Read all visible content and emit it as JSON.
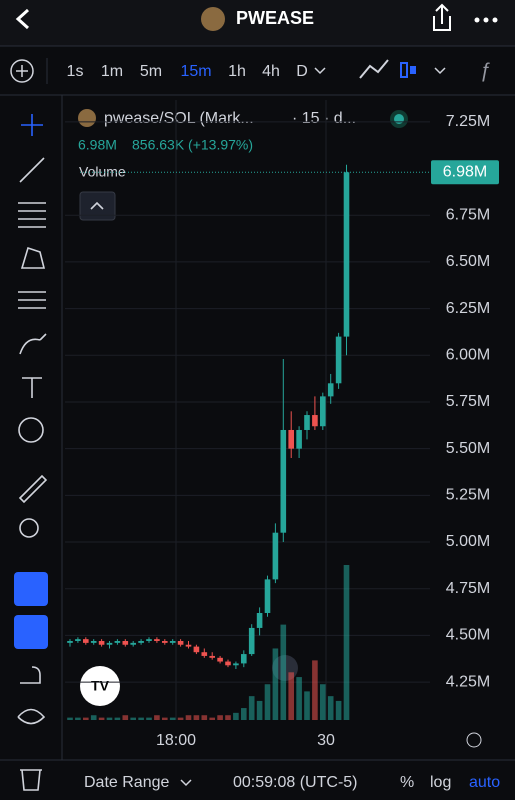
{
  "header": {
    "title": "PWEASE"
  },
  "toolbar": {
    "intervals": [
      "1s",
      "1m",
      "5m",
      "15m",
      "1h",
      "4h",
      "D"
    ],
    "active_interval": 3
  },
  "legend": {
    "symbol": "pwease/SOL (Mark...",
    "interval": "· 15 · d...",
    "price": "6.98M",
    "change": "856.63K (+13.97%)",
    "volume": "Volume"
  },
  "chart_data": {
    "type": "candlestick",
    "open": [
      4460000,
      4470000,
      4480000,
      4460000,
      4470000,
      4450000,
      4460000,
      4470000,
      4450000,
      4460000,
      4470000,
      4480000,
      4470000,
      4460000,
      4470000,
      4450000,
      4440000,
      4410000,
      4390000,
      4380000,
      4360000,
      4340000,
      4350000,
      4400000,
      4540000,
      4620000,
      4800000,
      5050000,
      5600000,
      5500000,
      5600000,
      5680000,
      5620000,
      5780000,
      5850000,
      6100000
    ],
    "high": [
      4480000,
      4490000,
      4490000,
      4480000,
      4480000,
      4470000,
      4480000,
      4480000,
      4470000,
      4480000,
      4490000,
      4490000,
      4480000,
      4480000,
      4480000,
      4470000,
      4450000,
      4430000,
      4410000,
      4390000,
      4370000,
      4360000,
      4420000,
      4560000,
      4650000,
      4820000,
      5100000,
      5980000,
      5700000,
      5620000,
      5700000,
      5780000,
      5800000,
      5900000,
      6120000,
      7020000
    ],
    "low": [
      4440000,
      4460000,
      4450000,
      4450000,
      4440000,
      4430000,
      4450000,
      4440000,
      4440000,
      4450000,
      4460000,
      4460000,
      4450000,
      4450000,
      4440000,
      4430000,
      4400000,
      4380000,
      4370000,
      4350000,
      4330000,
      4320000,
      4330000,
      4390000,
      4500000,
      4600000,
      4780000,
      5000000,
      5450000,
      5450000,
      5550000,
      5600000,
      5600000,
      5740000,
      5820000,
      6000000
    ],
    "close": [
      4470000,
      4480000,
      4460000,
      4470000,
      4450000,
      4460000,
      4470000,
      4450000,
      4460000,
      4470000,
      4480000,
      4470000,
      4460000,
      4470000,
      4450000,
      4440000,
      4410000,
      4390000,
      4380000,
      4360000,
      4340000,
      4350000,
      4400000,
      4540000,
      4620000,
      4800000,
      5050000,
      5600000,
      5500000,
      5600000,
      5680000,
      5620000,
      5780000,
      5850000,
      6100000,
      6980000
    ],
    "volume": [
      1,
      1,
      1,
      2,
      1,
      1,
      1,
      2,
      1,
      1,
      1,
      2,
      1,
      1,
      1,
      2,
      2,
      2,
      1,
      2,
      2,
      3,
      5,
      10,
      8,
      15,
      30,
      40,
      20,
      18,
      12,
      25,
      15,
      10,
      8,
      65
    ],
    "up_color": "#26a69a",
    "down_color": "#ef5350",
    "ylim": [
      4047000,
      7367000
    ],
    "yticks": [
      {
        "value": 4250000,
        "label": "4.25M"
      },
      {
        "value": 4500000,
        "label": "4.50M"
      },
      {
        "value": 4750000,
        "label": "4.75M"
      },
      {
        "value": 5000000,
        "label": "5.00M"
      },
      {
        "value": 5250000,
        "label": "5.25M"
      },
      {
        "value": 5500000,
        "label": "5.50M"
      },
      {
        "value": 5750000,
        "label": "5.75M"
      },
      {
        "value": 6000000,
        "label": "6.00M"
      },
      {
        "value": 6250000,
        "label": "6.25M"
      },
      {
        "value": 6500000,
        "label": "6.50M"
      },
      {
        "value": 6750000,
        "label": "6.75M"
      },
      {
        "value": 7250000,
        "label": "7.25M"
      }
    ],
    "last_price": {
      "value": 6980000,
      "label": "6.98M"
    },
    "x_labels": [
      "18:00",
      "30"
    ],
    "grid": true
  },
  "footer": {
    "date_range": "Date Range",
    "clock": "00:59:08 (UTC-5)",
    "percent": "%",
    "log": "log",
    "auto": "auto"
  }
}
